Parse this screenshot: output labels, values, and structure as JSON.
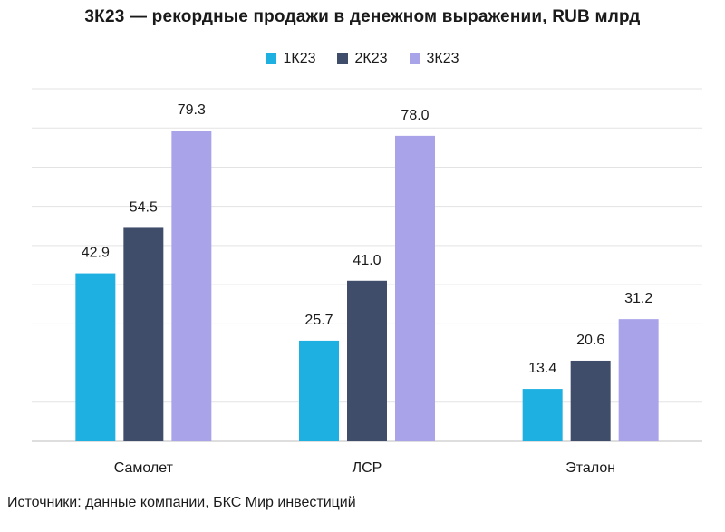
{
  "chart_data": {
    "type": "bar",
    "title": "3К23 — рекордные продажи в денежном выражении, RUB млрд",
    "categories": [
      "Самолет",
      "ЛСР",
      "Эталон"
    ],
    "series": [
      {
        "name": "1К23",
        "color": "#1eb0e0",
        "values": [
          42.9,
          25.7,
          13.4
        ]
      },
      {
        "name": "2К23",
        "color": "#3f4d6b",
        "values": [
          54.5,
          41.0,
          20.6
        ]
      },
      {
        "name": "3К23",
        "color": "#a9a3ea",
        "values": [
          79.3,
          78.0,
          31.2
        ]
      }
    ],
    "value_labels": [
      [
        "42.9",
        "25.7",
        "13.4"
      ],
      [
        "54.5",
        "41.0",
        "20.6"
      ],
      [
        "79.3",
        "78.0",
        "31.2"
      ]
    ],
    "ylim": [
      0,
      90
    ],
    "grid": true,
    "legend_position": "top-center",
    "xlabel": "",
    "ylabel": ""
  },
  "source": "Источники: данные компании, БКС Мир инвестиций"
}
